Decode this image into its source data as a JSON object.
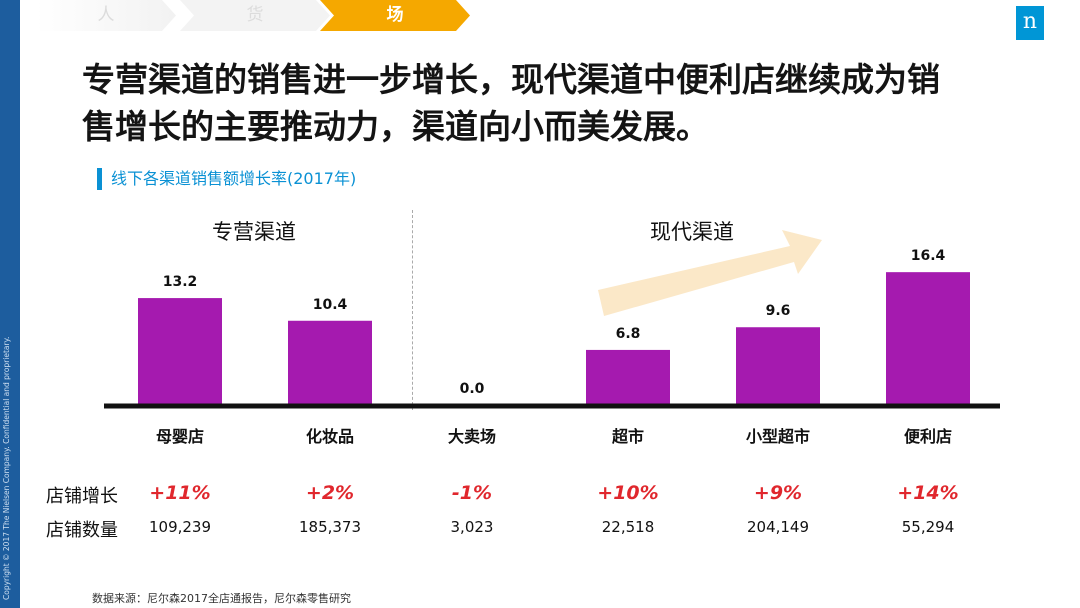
{
  "nav": {
    "steps": [
      "人",
      "货",
      "场"
    ]
  },
  "sidebar": {
    "copyright": "Copyright © 2017 The Nielsen Company. Confidential and proprietary."
  },
  "logo": {
    "letter": "n"
  },
  "headline": {
    "line1": "专营渠道的销售进一步增长，现代渠道中便利店继续成为销",
    "line2": "售增长的主要推动力，渠道向小而美发展。"
  },
  "chart_data": {
    "type": "bar",
    "title": "线下各渠道销售额增长率(2017年)",
    "groups": [
      {
        "label": "专营渠道",
        "categories": [
          "母婴店",
          "化妆品"
        ]
      },
      {
        "label": "现代渠道",
        "categories": [
          "大卖场",
          "超市",
          "小型超市",
          "便利店"
        ]
      }
    ],
    "categories": [
      "母婴店",
      "化妆品",
      "大卖场",
      "超市",
      "小型超市",
      "便利店"
    ],
    "values": [
      13.2,
      10.4,
      0.0,
      6.8,
      9.6,
      16.4
    ],
    "value_labels": [
      "13.2",
      "10.4",
      "0.0",
      "6.8",
      "9.6",
      "16.4"
    ],
    "ylim": [
      0,
      18
    ],
    "bar_color": "#a51aaf",
    "trend_arrow_color": "#fbe8c8",
    "xlabel": "",
    "ylabel": ""
  },
  "table": {
    "store_growth_label": "店铺增长",
    "store_count_label": "店铺数量",
    "store_growth": [
      "+11%",
      "+2%",
      "-1%",
      "+10%",
      "+9%",
      "+14%"
    ],
    "store_count": [
      "109,239",
      "185,373",
      "3,023",
      "22,518",
      "204,149",
      "55,294"
    ],
    "growth_color": "#e0272d"
  },
  "source": "数据来源：尼尔森2017全店通报告，尼尔森零售研究"
}
